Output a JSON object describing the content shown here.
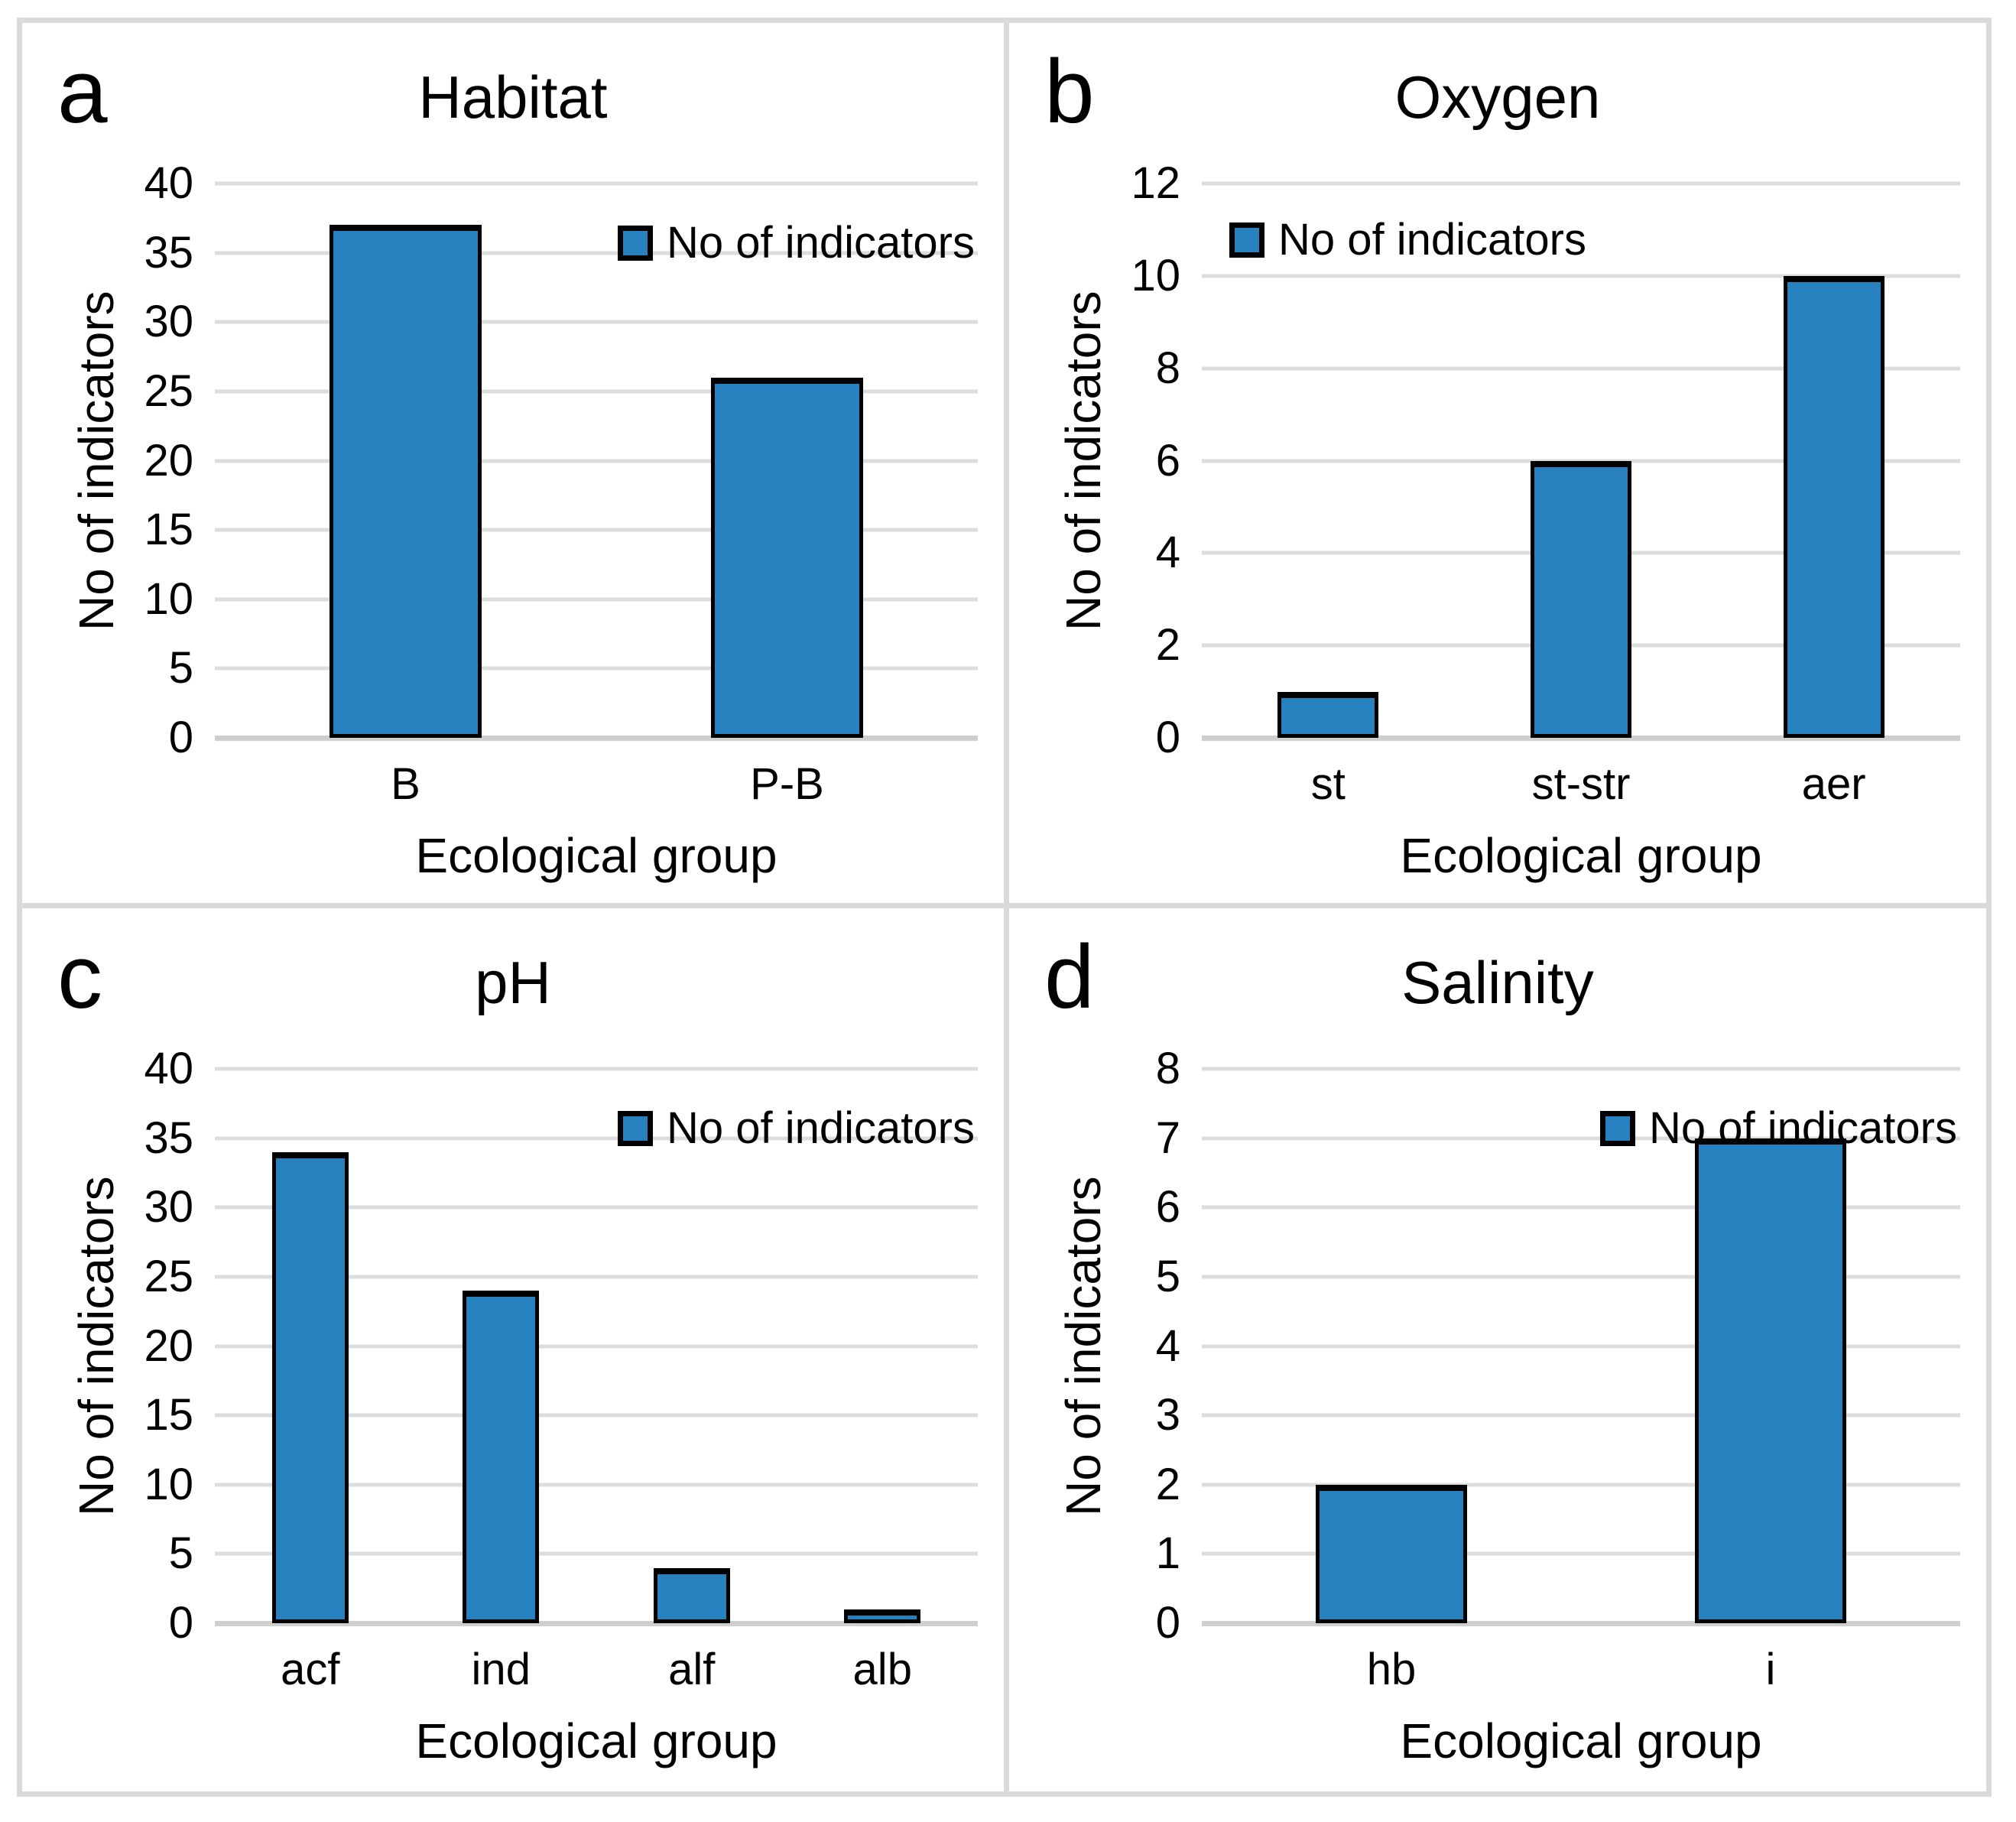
{
  "colors": {
    "bar_fill": "#2781BE",
    "bar_border": "#000000",
    "gridline": "#DCDCDC",
    "axis_line": "#CFCFCF",
    "panel_border": "#DADADA",
    "text": "#000000",
    "background": "#FFFFFF"
  },
  "chart_data": [
    {
      "type": "bar",
      "panel_label": "a",
      "title": "Habitat",
      "series_label": "No of indicators",
      "categories": [
        "B",
        "P-B"
      ],
      "values": [
        37,
        26
      ],
      "xlabel": "Ecological group",
      "ylabel": "No of indicators",
      "ylim": [
        0,
        40
      ],
      "ytick_step": 5,
      "grid": true,
      "legend_position": "top-right"
    },
    {
      "type": "bar",
      "panel_label": "b",
      "title": "Oxygen",
      "series_label": "No of indicators",
      "categories": [
        "st",
        "st-str",
        "aer"
      ],
      "values": [
        1,
        6,
        10
      ],
      "xlabel": "Ecological group",
      "ylabel": "No of indicators",
      "ylim": [
        0,
        12
      ],
      "ytick_step": 2,
      "grid": true,
      "legend_position": "top-left"
    },
    {
      "type": "bar",
      "panel_label": "c",
      "title": "pH",
      "series_label": "No of indicators",
      "categories": [
        "acf",
        "ind",
        "alf",
        "alb"
      ],
      "values": [
        34,
        24,
        4,
        1
      ],
      "xlabel": "Ecological group",
      "ylabel": "No of indicators",
      "ylim": [
        0,
        40
      ],
      "ytick_step": 5,
      "grid": true,
      "legend_position": "top-right"
    },
    {
      "type": "bar",
      "panel_label": "d",
      "title": "Salinity",
      "series_label": "No of indicators",
      "categories": [
        "hb",
        "i"
      ],
      "values": [
        2,
        7
      ],
      "xlabel": "Ecological group",
      "ylabel": "No of indicators",
      "ylim": [
        0,
        8
      ],
      "ytick_step": 1,
      "grid": true,
      "legend_position": "top-right"
    }
  ]
}
